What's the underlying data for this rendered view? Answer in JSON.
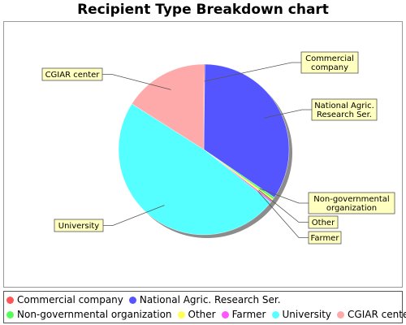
{
  "chart_data": {
    "type": "pie",
    "title": "Recipient Type Breakdown chart",
    "legend_placement": "bottom",
    "slices": [
      {
        "label": "Commercial company",
        "value": 0.2,
        "color": "#ff5555",
        "callout": [
          "Commercial",
          "company"
        ]
      },
      {
        "label": "National Agric. Research Ser.",
        "value": 34.3,
        "color": "#5555ff",
        "callout": [
          "National Agric.",
          "Research Ser."
        ]
      },
      {
        "label": "Non-governmental organization",
        "value": 0.4,
        "color": "#55ff55",
        "callout": [
          "Non-governmental",
          "organization"
        ]
      },
      {
        "label": "Other",
        "value": 0.4,
        "color": "#ffff55",
        "callout": [
          "Other"
        ]
      },
      {
        "label": "Farmer",
        "value": 0.3,
        "color": "#ff55ff",
        "callout": [
          "Farmer"
        ]
      },
      {
        "label": "University",
        "value": 48.4,
        "color": "#55ffff",
        "callout": [
          "University"
        ]
      },
      {
        "label": "CGIAR center",
        "value": 16.0,
        "color": "#ffaaaa",
        "callout": [
          "CGIAR center"
        ]
      }
    ]
  }
}
